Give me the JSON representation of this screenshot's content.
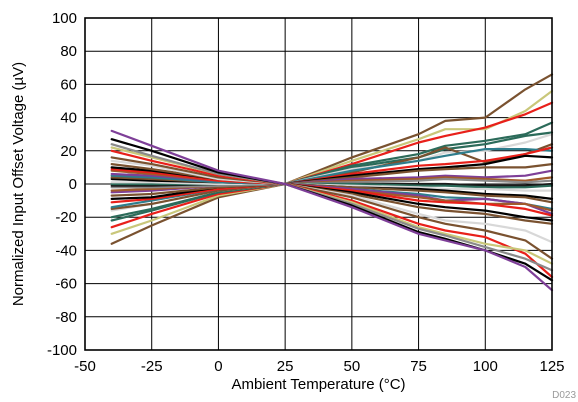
{
  "chart_data": {
    "type": "line",
    "xlabel": "Ambient Temperature (°C)",
    "ylabel": "Normalized Input Offset Voltage (µV)",
    "figure_id": "D023",
    "xlim": [
      -50,
      125
    ],
    "ylim": [
      -100,
      100
    ],
    "xticks": [
      -50,
      -25,
      0,
      25,
      50,
      75,
      100,
      125
    ],
    "yticks": [
      -100,
      -80,
      -60,
      -40,
      -20,
      0,
      20,
      40,
      60,
      80,
      100
    ],
    "grid": true,
    "x": [
      -40,
      -25,
      0,
      25,
      50,
      75,
      85,
      100,
      115,
      125
    ],
    "series": [
      {
        "color": "#7a5230",
        "values": [
          -36,
          -25,
          -8,
          0,
          16,
          30,
          38,
          40,
          57,
          66
        ]
      },
      {
        "color": "#c9c77a",
        "values": [
          -30,
          -22,
          -7,
          0,
          14,
          27,
          33,
          33,
          44,
          56
        ]
      },
      {
        "color": "#e8201a",
        "values": [
          -26,
          -18,
          -6,
          0,
          12,
          25,
          29,
          34,
          42,
          49
        ]
      },
      {
        "color": "#2c6b5a",
        "values": [
          -22,
          -16,
          -5,
          0,
          11,
          18,
          23,
          26,
          30,
          37
        ]
      },
      {
        "color": "#2c6b5a",
        "values": [
          -20,
          -15,
          -5,
          0,
          10,
          16,
          21,
          24,
          29,
          31
        ]
      },
      {
        "color": "#d8d8d8",
        "values": [
          -16,
          -12,
          -4,
          0,
          9,
          14,
          19,
          20,
          25,
          30
        ]
      },
      {
        "color": "#7a5230",
        "values": [
          -15,
          -12,
          -4,
          0,
          7,
          16,
          22,
          13,
          18,
          24
        ]
      },
      {
        "color": "#2e7d8c",
        "values": [
          -14,
          -10,
          -3,
          0,
          8,
          14,
          17,
          21,
          21,
          20
        ]
      },
      {
        "color": "#e8201a",
        "values": [
          -11,
          -9,
          -3,
          0,
          6,
          11,
          12,
          14,
          18,
          22
        ]
      },
      {
        "color": "#000000",
        "values": [
          -9,
          -8,
          -2,
          0,
          5,
          9,
          10,
          12,
          17,
          16
        ]
      },
      {
        "color": "#7a5230",
        "values": [
          -7,
          -6,
          -2,
          0,
          4,
          8,
          9,
          10,
          10,
          12
        ]
      },
      {
        "color": "#7e3f98",
        "values": [
          -5,
          -4,
          -1,
          0,
          3,
          4,
          5,
          4,
          5,
          8
        ]
      },
      {
        "color": "#a05a2c",
        "values": [
          -4,
          -3,
          -1,
          0,
          2,
          3,
          4,
          3,
          2,
          4
        ]
      },
      {
        "color": "#8a8a8a",
        "values": [
          -2,
          -2,
          -1,
          0,
          1,
          2,
          3,
          2,
          1,
          2
        ]
      },
      {
        "color": "#1a1a1a",
        "values": [
          -1,
          -1,
          0,
          0,
          0,
          0,
          0,
          -1,
          -1,
          0
        ]
      },
      {
        "color": "#2c6b5a",
        "values": [
          0,
          0,
          0,
          0,
          0,
          -1,
          -1,
          -2,
          -2,
          -1
        ]
      },
      {
        "color": "#d8d8d8",
        "values": [
          1,
          1,
          0,
          0,
          -1,
          -2,
          -3,
          -3,
          -4,
          -4
        ]
      },
      {
        "color": "#000000",
        "values": [
          3,
          2,
          1,
          0,
          -2,
          -3,
          -4,
          -6,
          -7,
          -9
        ]
      },
      {
        "color": "#7a5230",
        "values": [
          4,
          3,
          1,
          0,
          -2,
          -4,
          -5,
          -7,
          -8,
          -11
        ]
      },
      {
        "color": "#2e7d8c",
        "values": [
          5,
          4,
          1,
          0,
          -3,
          -6,
          -8,
          -9,
          -12,
          -15
        ]
      },
      {
        "color": "#7e3f98",
        "values": [
          6,
          5,
          2,
          0,
          -3,
          -7,
          -10,
          -9,
          -12,
          -18
        ]
      },
      {
        "color": "#a05a2c",
        "values": [
          8,
          6,
          2,
          0,
          -4,
          -8,
          -10,
          -12,
          -12,
          -16
        ]
      },
      {
        "color": "#e8201a",
        "values": [
          9,
          7,
          2,
          0,
          -4,
          -10,
          -11,
          -12,
          -15,
          -19
        ]
      },
      {
        "color": "#000000",
        "values": [
          10,
          8,
          3,
          0,
          -5,
          -12,
          -14,
          -16,
          -20,
          -22
        ]
      },
      {
        "color": "#7a5230",
        "values": [
          12,
          9,
          3,
          0,
          -6,
          -14,
          -16,
          -18,
          -22,
          -24
        ]
      },
      {
        "color": "#d8d8d8",
        "values": [
          14,
          11,
          3,
          0,
          -7,
          -18,
          -22,
          -24,
          -28,
          -35
        ]
      },
      {
        "color": "#7a5230",
        "values": [
          16,
          12,
          4,
          0,
          -8,
          -20,
          -24,
          -28,
          -34,
          -45
        ]
      },
      {
        "color": "#e8201a",
        "values": [
          20,
          14,
          5,
          0,
          -10,
          -24,
          -28,
          -32,
          -42,
          -56
        ]
      },
      {
        "color": "#c9c77a",
        "values": [
          22,
          16,
          6,
          0,
          -11,
          -26,
          -30,
          -36,
          -40,
          -48
        ]
      },
      {
        "color": "#8a8a8a",
        "values": [
          24,
          17,
          6,
          0,
          -12,
          -27,
          -31,
          -38,
          -45,
          -52
        ]
      },
      {
        "color": "#000000",
        "values": [
          27,
          20,
          7,
          0,
          -13,
          -29,
          -33,
          -40,
          -48,
          -58
        ]
      },
      {
        "color": "#7e3f98",
        "values": [
          32,
          23,
          8,
          0,
          -14,
          -30,
          -34,
          -40,
          -50,
          -64
        ]
      }
    ]
  }
}
